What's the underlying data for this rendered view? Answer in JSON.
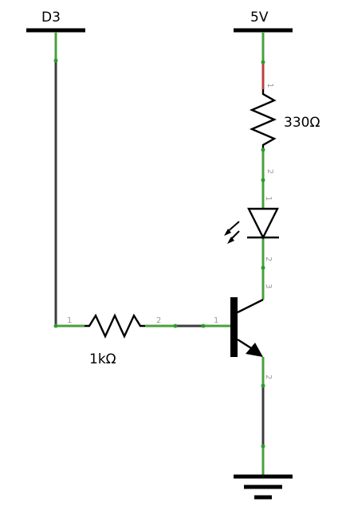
{
  "labels": {
    "d3": "D3",
    "vcc": "5V",
    "r_led": "330Ω",
    "r_base": "1kΩ"
  },
  "pins": {
    "r_led_1": "1",
    "r_led_2": "2",
    "led_1": "1",
    "led_2": "2",
    "q_collector": "3",
    "q_base": "1",
    "q_emitter": "2",
    "r_base_1": "1",
    "r_base_2": "2"
  },
  "colors": {
    "wire": "#3c3c3c",
    "connection": "#4aa03c",
    "power_lead": "#b84040",
    "symbol": "#000000"
  }
}
